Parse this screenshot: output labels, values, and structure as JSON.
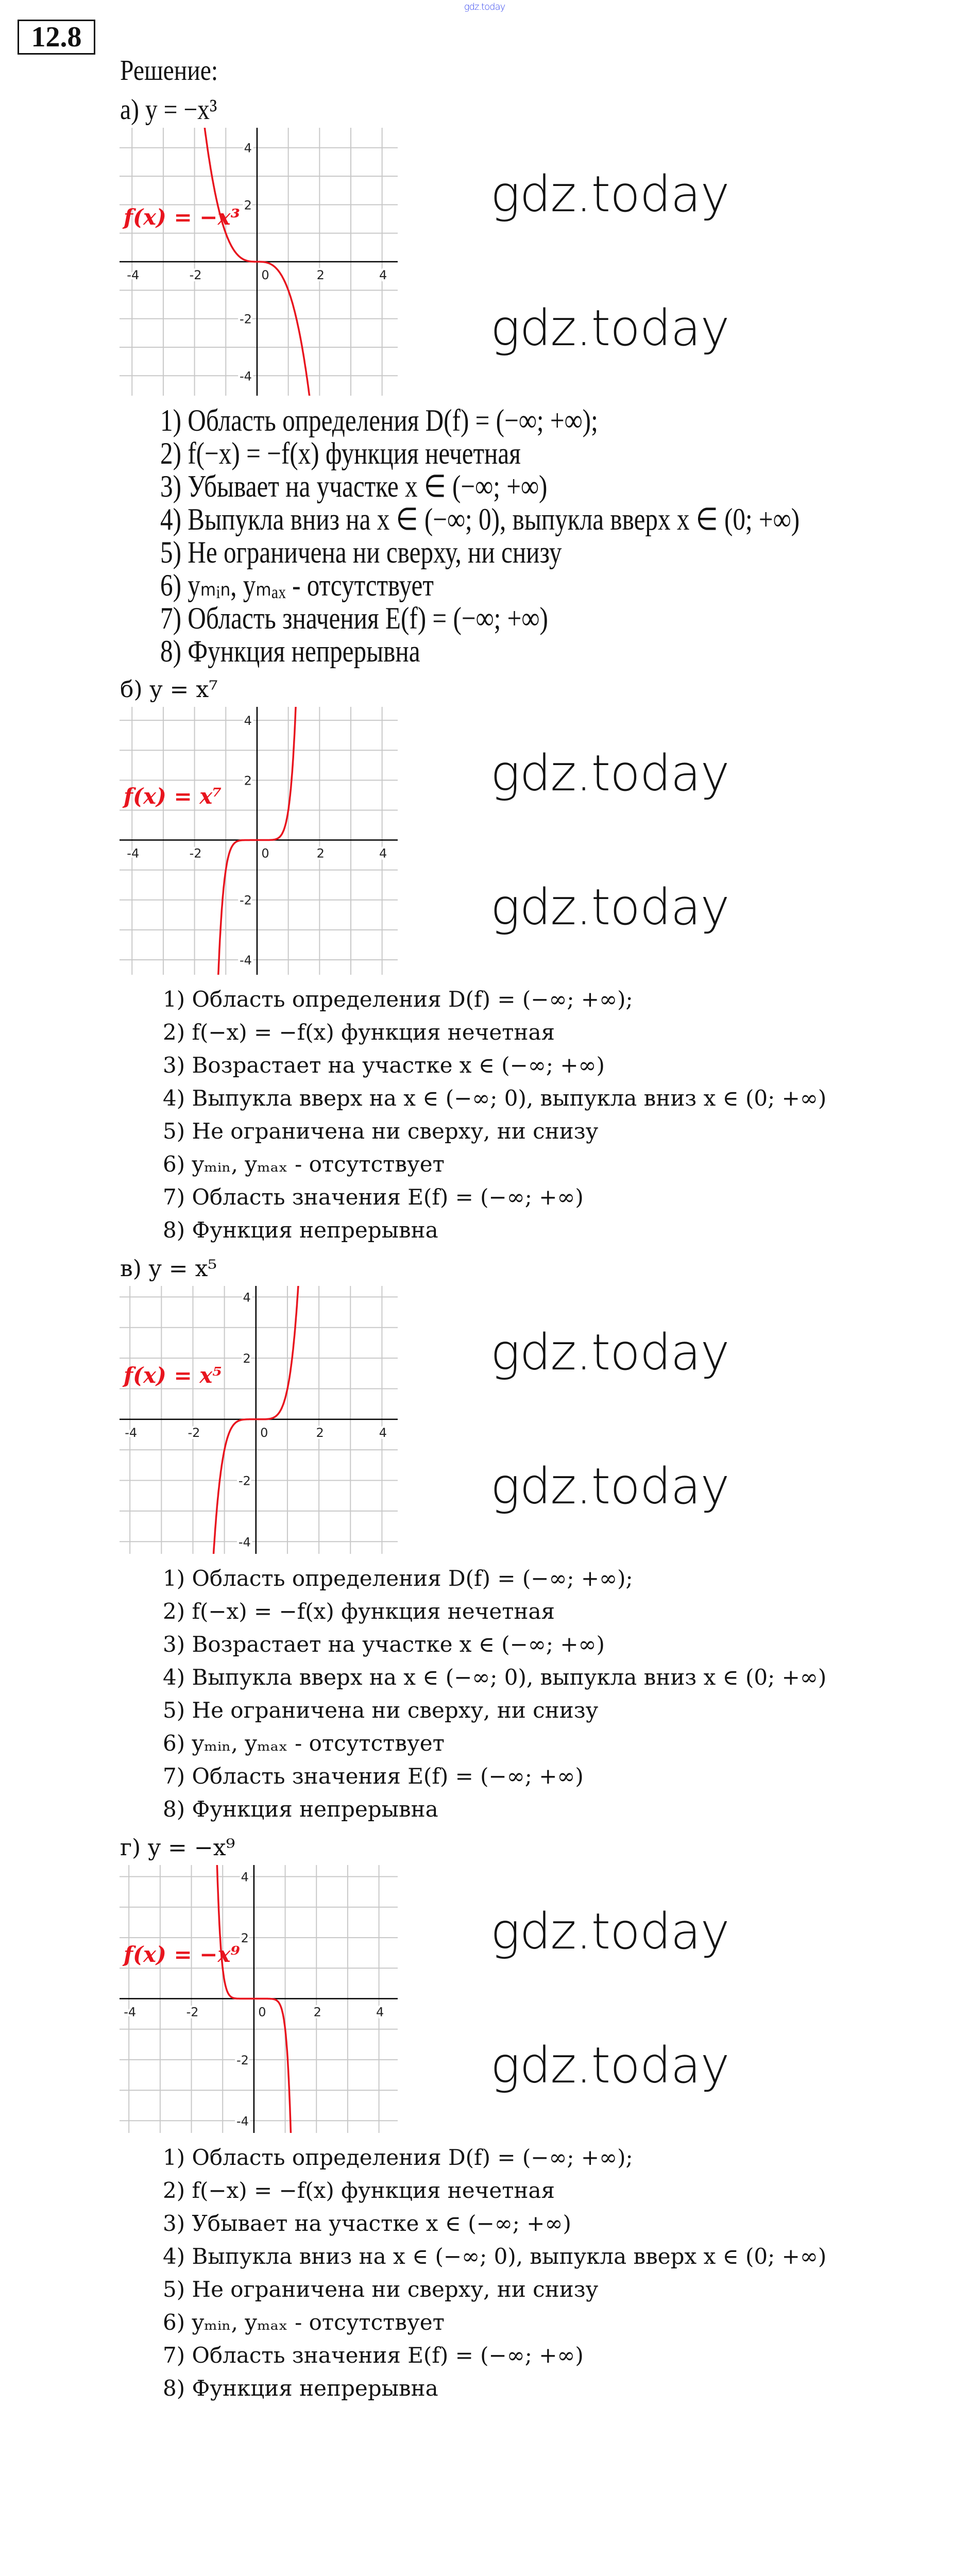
{
  "header": {
    "watermark": "gdz.today",
    "task_number": "12.8",
    "solution_label": "Решение:"
  },
  "parts": [
    {
      "title": "а) y = −x³",
      "items": [
        "1) Область определения D(f) = (−∞; +∞);",
        "2) f(−x) = −f(x) функция нечетная",
        "3) Убывает на участке x ∈ (−∞; +∞)",
        "4) Выпукла вниз на x ∈ (−∞; 0), выпукла вверх x ∈ (0; +∞)",
        "5) Не ограничена ни сверху, ни снизу",
        "6) yₘᵢₙ, yₘₐₓ - отсутствует",
        "7) Область значения E(f) = (−∞; +∞)",
        "8) Функция непрерывна"
      ]
    },
    {
      "title": "б) y = x⁷",
      "items": [
        "1) Область определения D(f) = (−∞; +∞);",
        "2) f(−x) = −f(x) функция нечетная",
        "3) Возрастает на участке x ∈ (−∞; +∞)",
        "4) Выпукла вверх на x ∈ (−∞; 0), выпукла вниз x ∈ (0; +∞)",
        "5) Не ограничена ни сверху, ни снизу",
        "6) yₘᵢₙ, yₘₐₓ - отсутствует",
        "7) Область значения E(f) = (−∞; +∞)",
        "8) Функция непрерывна"
      ]
    },
    {
      "title": "в)  y = x⁵",
      "items": [
        "1) Область определения D(f) = (−∞; +∞);",
        "2) f(−x) = −f(x) функция нечетная",
        "3) Возрастает на участке x ∈ (−∞; +∞)",
        "4) Выпукла вверх на x ∈ (−∞; 0), выпукла вниз x ∈ (0; +∞)",
        "5) Не ограничена ни сверху, ни снизу",
        "6) yₘᵢₙ, yₘₐₓ - отсутствует",
        "7) Область значения E(f) = (−∞; +∞)",
        "8) Функция непрерывна"
      ]
    },
    {
      "title": "г) y = −x⁹",
      "items": [
        "1) Область определения D(f) = (−∞; +∞);",
        "2) f(−x) = −f(x) функция нечетная",
        "3) Убывает на участке x ∈ (−∞; +∞)",
        "4) Выпукла вниз на x ∈ (−∞; 0), выпукла вверх x ∈ (0; +∞)",
        "5) Не ограничена ни сверху, ни снизу",
        "6) yₘᵢₙ, yₘₐₓ - отсутствует",
        "7) Область значения E(f) = (−∞; +∞)",
        "8) Функция непрерывна"
      ]
    }
  ],
  "chart_data": [
    {
      "type": "line",
      "function_label": "f(x) = −x³",
      "coefficient": -1,
      "power": 3,
      "xlim": [
        -4.4,
        4.5
      ],
      "ylim": [
        -4.7,
        4.7
      ],
      "x_ticks": [
        -4,
        -2,
        0,
        2,
        4
      ],
      "y_ticks": [
        -4,
        -2,
        0,
        2,
        4
      ],
      "grid": true,
      "grid_step": 1,
      "curve_color": "#e8141e",
      "grid_color": "#c8c8c8"
    },
    {
      "type": "line",
      "function_label": "f(x) = x⁷",
      "coefficient": 1,
      "power": 7,
      "xlim": [
        -4.4,
        4.5
      ],
      "ylim": [
        -4.5,
        4.45
      ],
      "x_ticks": [
        -4,
        -2,
        0,
        2,
        4
      ],
      "y_ticks": [
        -4,
        -2,
        0,
        2,
        4
      ],
      "grid": true,
      "grid_step": 1,
      "curve_color": "#e8141e",
      "grid_color": "#c8c8c8"
    },
    {
      "type": "line",
      "function_label": "f(x) = x⁵",
      "coefficient": 1,
      "power": 5,
      "xlim": [
        -4.33,
        4.5
      ],
      "ylim": [
        -4.4,
        4.36
      ],
      "x_ticks": [
        -4,
        -2,
        0,
        2,
        4
      ],
      "y_ticks": [
        -4,
        -2,
        0,
        2,
        4
      ],
      "grid": true,
      "grid_step": 1,
      "curve_color": "#e8141e",
      "grid_color": "#c8c8c8"
    },
    {
      "type": "line",
      "function_label": "f(x) = −x⁹",
      "coefficient": -1,
      "power": 9,
      "xlim": [
        -4.3,
        4.6
      ],
      "ylim": [
        -4.4,
        4.38
      ],
      "x_ticks": [
        -4,
        -2,
        0,
        2,
        4
      ],
      "y_ticks": [
        -4,
        -2,
        0,
        2,
        4
      ],
      "grid": true,
      "grid_step": 1,
      "curve_color": "#e8141e",
      "grid_color": "#c8c8c8"
    }
  ]
}
